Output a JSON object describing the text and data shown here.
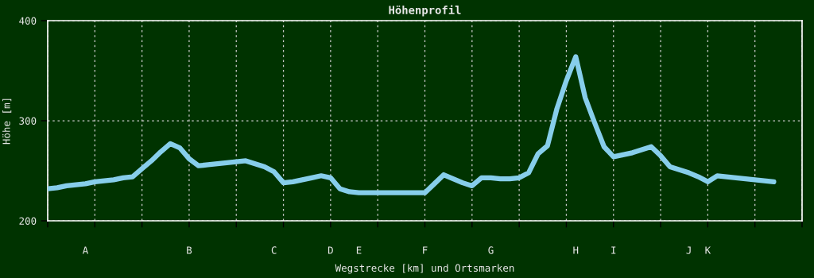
{
  "chart_data": {
    "type": "line",
    "title": "Höhenprofil",
    "xlabel": "Wegstrecke [km] und Ortsmarken",
    "ylabel": "Höhe [m]",
    "categories": [
      null,
      null,
      null,
      null,
      "A",
      null,
      null,
      null,
      null,
      null,
      null,
      null,
      null,
      null,
      null,
      "B",
      null,
      null,
      null,
      null,
      null,
      null,
      null,
      null,
      "C",
      null,
      null,
      null,
      null,
      null,
      "D",
      null,
      null,
      "E",
      null,
      null,
      null,
      null,
      null,
      null,
      "F",
      null,
      null,
      null,
      null,
      null,
      null,
      "G",
      null,
      null,
      null,
      null,
      null,
      null,
      null,
      null,
      "H",
      null,
      null,
      null,
      "I",
      null,
      null,
      null,
      null,
      null,
      null,
      null,
      "J",
      null,
      "K",
      null,
      null,
      null,
      null,
      null,
      null,
      null,
      null,
      null,
      null
    ],
    "series": [
      {
        "color": "#87ceeb",
        "values": [
          232,
          233,
          235,
          236,
          237,
          239,
          240,
          241,
          243,
          244,
          252,
          260,
          269,
          277,
          273,
          262,
          255,
          256,
          257,
          258,
          259,
          260,
          257,
          254,
          249,
          238,
          239,
          241,
          243,
          245,
          243,
          232,
          229,
          228,
          228,
          228,
          228,
          228,
          228,
          228,
          228,
          237,
          246,
          242,
          238,
          235,
          243,
          243,
          242,
          242,
          243,
          248,
          267,
          275,
          312,
          340,
          364,
          323,
          298,
          274,
          264,
          266,
          268,
          271,
          274,
          265,
          254,
          251,
          248,
          244,
          239,
          245,
          244,
          243,
          242,
          241,
          240,
          239,
          null,
          null,
          null
        ]
      }
    ],
    "ylim": [
      200,
      400
    ],
    "yticks": [
      200,
      300,
      400
    ],
    "grid": true,
    "marker": "none",
    "line_style": "solid"
  }
}
